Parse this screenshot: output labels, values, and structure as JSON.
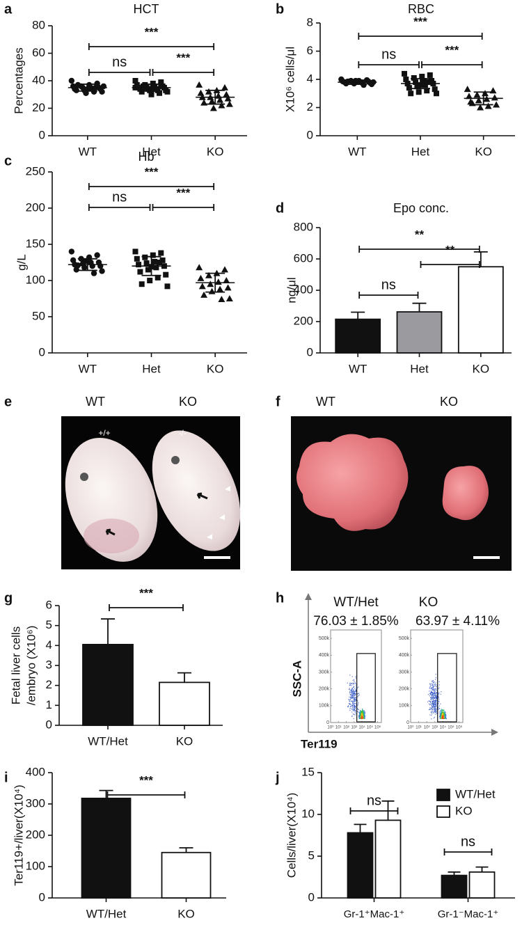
{
  "chart_data": [
    {
      "panel": "a",
      "type": "dot",
      "title": "HCT",
      "ylabel": "Percentages",
      "categories": [
        "WT",
        "Het",
        "KO"
      ],
      "markers": [
        "circle",
        "square",
        "triangle"
      ],
      "color": "#111111",
      "points": [
        [
          40,
          38,
          37,
          36,
          36,
          35,
          35,
          35,
          34,
          34,
          34,
          33,
          33,
          32,
          32,
          31,
          37,
          36,
          35,
          34
        ],
        [
          40,
          39,
          38,
          37,
          37,
          36,
          36,
          35,
          35,
          35,
          34,
          34,
          34,
          33,
          33,
          33,
          32,
          32,
          31,
          30,
          36,
          35,
          37,
          34
        ],
        [
          37,
          35,
          33,
          32,
          31,
          30,
          29,
          28,
          28,
          27,
          26,
          25,
          24,
          23,
          22,
          20
        ]
      ],
      "means": [
        35,
        35,
        28
      ],
      "sd": [
        2.5,
        2.5,
        5
      ],
      "ylim": [
        0,
        80
      ],
      "yticks": [
        0,
        20,
        40,
        60,
        80
      ],
      "annotations": [
        {
          "text": "***",
          "between": [
            "WT",
            "KO"
          ]
        },
        {
          "text": "ns",
          "between": [
            "WT",
            "Het"
          ]
        },
        {
          "text": "***",
          "between": [
            "Het",
            "KO"
          ]
        }
      ]
    },
    {
      "panel": "b",
      "type": "dot",
      "title": "RBC",
      "ylabel": "X10⁶ cells/μl",
      "categories": [
        "WT",
        "Het",
        "KO"
      ],
      "markers": [
        "circle",
        "square",
        "triangle"
      ],
      "color": "#111111",
      "points": [
        [
          4.0,
          3.95,
          3.9,
          3.9,
          3.85,
          3.85,
          3.8,
          3.8,
          3.8,
          3.75,
          3.75,
          3.7,
          3.7,
          3.65,
          3.6,
          3.9,
          3.85,
          3.8
        ],
        [
          4.4,
          4.3,
          4.2,
          4.1,
          4.0,
          3.9,
          3.9,
          3.8,
          3.7,
          3.7,
          3.6,
          3.5,
          3.4,
          3.3,
          3.2,
          3.1,
          3.0,
          3.0,
          3.8,
          3.6
        ],
        [
          3.3,
          3.2,
          3.0,
          2.9,
          2.8,
          2.7,
          2.6,
          2.5,
          2.4,
          2.2,
          2.1,
          2.0,
          2.3
        ]
      ],
      "means": [
        3.8,
        3.7,
        2.65
      ],
      "sd": [
        0.15,
        0.35,
        0.45
      ],
      "ylim": [
        0,
        8
      ],
      "yticks": [
        0,
        2,
        4,
        6,
        8
      ],
      "annotations": [
        {
          "text": "***",
          "between": [
            "WT",
            "KO"
          ]
        },
        {
          "text": "ns",
          "between": [
            "WT",
            "Het"
          ]
        },
        {
          "text": "***",
          "between": [
            "Het",
            "KO"
          ]
        }
      ]
    },
    {
      "panel": "c",
      "type": "dot",
      "title": "Hb",
      "ylabel": "g/L",
      "categories": [
        "WT",
        "Het",
        "KO"
      ],
      "markers": [
        "circle",
        "square",
        "triangle"
      ],
      "color": "#111111",
      "points": [
        [
          140,
          135,
          132,
          130,
          128,
          125,
          125,
          123,
          122,
          120,
          120,
          118,
          115,
          113,
          110,
          127,
          121
        ],
        [
          140,
          138,
          135,
          132,
          130,
          128,
          126,
          124,
          122,
          120,
          118,
          115,
          112,
          108,
          104,
          100,
          95,
          92,
          125,
          119
        ],
        [
          118,
          115,
          110,
          107,
          103,
          100,
          98,
          95,
          92,
          90,
          88,
          85,
          80,
          75,
          74
        ]
      ],
      "means": [
        122,
        120,
        97
      ],
      "sd": [
        8,
        13,
        13
      ],
      "ylim": [
        0,
        250
      ],
      "yticks": [
        0,
        50,
        100,
        150,
        200,
        250
      ],
      "annotations": [
        {
          "text": "***",
          "between": [
            "WT",
            "KO"
          ]
        },
        {
          "text": "ns",
          "between": [
            "WT",
            "Het"
          ]
        },
        {
          "text": "***",
          "between": [
            "Het",
            "KO"
          ]
        }
      ]
    },
    {
      "panel": "d",
      "type": "bar",
      "title": "Epo conc.",
      "ylabel": "ng/μl",
      "categories": [
        "WT",
        "Het",
        "KO"
      ],
      "values": [
        215,
        262,
        550
      ],
      "errors": [
        45,
        55,
        95
      ],
      "colors": [
        "#111111",
        "#9a9a9f",
        "#ffffff"
      ],
      "ylim": [
        0,
        800
      ],
      "yticks": [
        0,
        200,
        400,
        600,
        800
      ],
      "annotations": [
        {
          "text": "**",
          "between": [
            "WT",
            "KO"
          ]
        },
        {
          "text": "**",
          "between": [
            "Het",
            "KO"
          ]
        },
        {
          "text": "ns",
          "between": [
            "WT",
            "Het"
          ]
        }
      ]
    },
    {
      "panel": "g",
      "type": "bar",
      "ylabel": [
        "Fetal liver cells",
        "/embryo (X10⁶)"
      ],
      "categories": [
        "WT/Het",
        "KO"
      ],
      "values": [
        4.05,
        2.15
      ],
      "errors": [
        1.28,
        0.48
      ],
      "colors": [
        "#111111",
        "#ffffff"
      ],
      "ylim": [
        0,
        6
      ],
      "yticks": [
        0,
        1,
        2,
        3,
        4,
        5,
        6
      ],
      "annotations": [
        {
          "text": "***",
          "between": [
            "WT/Het",
            "KO"
          ]
        }
      ]
    },
    {
      "panel": "h",
      "type": "flow",
      "ylabel": "SSC-A",
      "xlabel": "Ter119",
      "xscale": "log",
      "samples": [
        {
          "name": "WT/Het",
          "stat": "76.03 ± 1.85%"
        },
        {
          "name": "KO",
          "stat": "63.97 ± 4.11%"
        }
      ],
      "xlim": [
        1,
        3000000
      ],
      "xticks": [
        {
          "value": 1,
          "label": "10⁰"
        },
        {
          "value": 10,
          "label": "10¹"
        },
        {
          "value": 100,
          "label": "10²"
        },
        {
          "value": 1000,
          "label": "10³"
        },
        {
          "value": 10000,
          "label": "10⁴"
        },
        {
          "value": 100000,
          "label": "10⁵"
        },
        {
          "value": 1000000,
          "label": "10⁶"
        }
      ],
      "ylim": [
        0,
        550000
      ],
      "yticks": [
        0,
        {
          "value": 100000,
          "label": "100k"
        },
        {
          "value": 200000,
          "label": "200k"
        },
        {
          "value": 300000,
          "label": "300k"
        },
        {
          "value": 400000,
          "label": "400k"
        },
        {
          "value": 500000,
          "label": "500k"
        }
      ]
    },
    {
      "panel": "i",
      "type": "bar",
      "ylabel": "Ter119+/liver(X10⁴)",
      "categories": [
        "WT/Het",
        "KO"
      ],
      "values": [
        318,
        145
      ],
      "errors": [
        25,
        15
      ],
      "colors": [
        "#111111",
        "#ffffff"
      ],
      "ylim": [
        0,
        400
      ],
      "yticks": [
        0,
        100,
        200,
        300,
        400
      ],
      "annotations": [
        {
          "text": "***",
          "between": [
            "WT/Het",
            "KO"
          ]
        }
      ]
    },
    {
      "panel": "j",
      "type": "grouped_bar",
      "ylabel": "Cells/liver(X10⁴)",
      "categories": [
        "Gr-1⁺Mac-1⁺",
        "Gr-1⁻Mac-1⁺"
      ],
      "series": [
        {
          "name": "WT/Het",
          "color": "#111111",
          "values": [
            7.8,
            2.7
          ],
          "errors": [
            1.0,
            0.4
          ]
        },
        {
          "name": "KO",
          "color": "#ffffff",
          "values": [
            9.3,
            3.1
          ],
          "errors": [
            2.3,
            0.6
          ]
        }
      ],
      "legend": "upper right",
      "ylim": [
        0,
        15
      ],
      "yticks": [
        0,
        5,
        10,
        15
      ],
      "annotations": [
        {
          "text": "ns",
          "group": "Gr-1⁺Mac-1⁺"
        },
        {
          "text": "ns",
          "group": "Gr-1⁻Mac-1⁺"
        }
      ]
    }
  ],
  "images": [
    {
      "panel": "e",
      "labels": [
        "WT",
        "KO"
      ],
      "genotypes": [
        "+/+",
        "-/-"
      ]
    },
    {
      "panel": "f",
      "labels": [
        "WT",
        "KO"
      ]
    }
  ]
}
